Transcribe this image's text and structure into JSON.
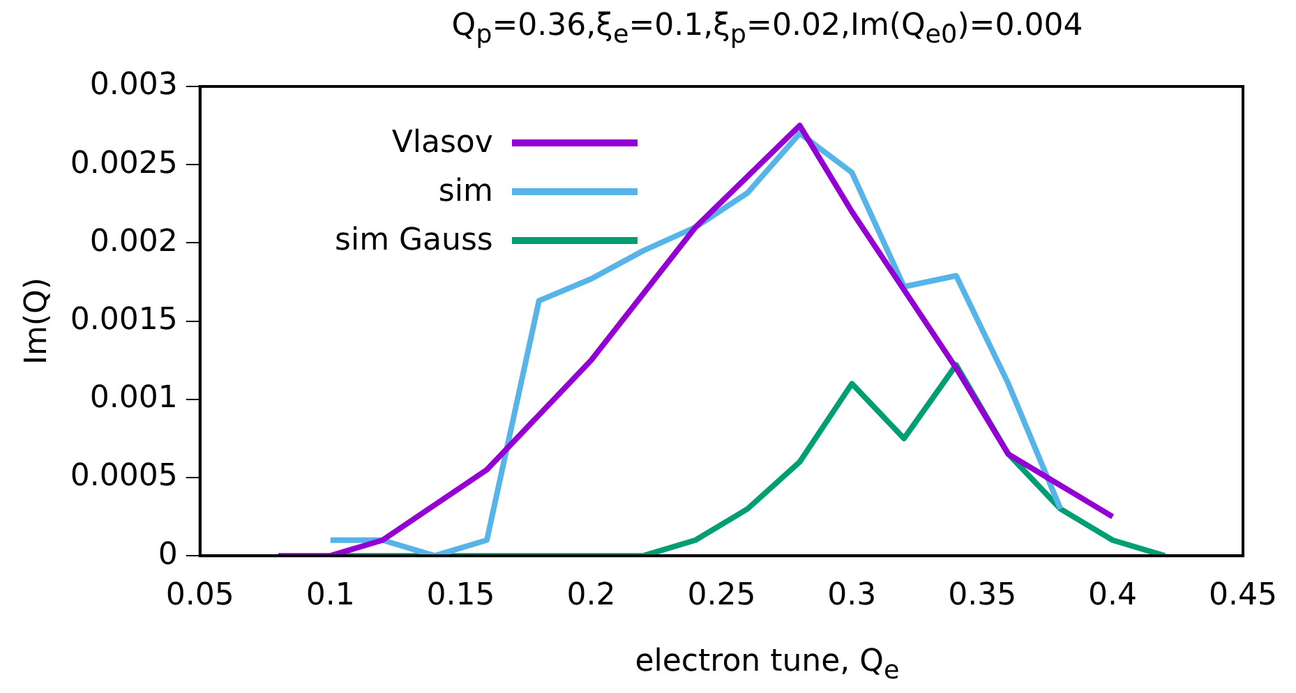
{
  "chart_data": {
    "type": "line",
    "title": "Q$_{p}$=0.36,ξ$_{e}$=0.1,ξ$_{p}$=0.02,Im(Q$_{e0}$)=0.004",
    "xlabel": "electron tune, Q$_{e}$",
    "ylabel": "Im(Q)",
    "xlim": [
      0.05,
      0.45
    ],
    "xticks": [
      0.05,
      0.1,
      0.15,
      0.2,
      0.25,
      0.3,
      0.35,
      0.4,
      0.45
    ],
    "ylim": [
      0,
      0.003
    ],
    "yticks": [
      0,
      0.0005,
      0.001,
      0.0015,
      0.002,
      0.0025,
      0.003
    ],
    "grid": false,
    "legend": "top left",
    "marker": "none",
    "line_style": "solid",
    "series": [
      {
        "name": "Vlasov",
        "color": "#9400d3",
        "x": [
          0.08,
          0.1,
          0.12,
          0.16,
          0.2,
          0.24,
          0.28,
          0.3,
          0.34,
          0.36,
          0.38,
          0.4
        ],
        "values": [
          0,
          0,
          0.0001,
          0.00055,
          0.00125,
          0.0021,
          0.00275,
          0.0022,
          0.0012,
          0.00065,
          0.00045,
          0.00025
        ]
      },
      {
        "name": "sim",
        "color": "#56b4e9",
        "x": [
          0.1,
          0.12,
          0.14,
          0.16,
          0.18,
          0.2,
          0.22,
          0.24,
          0.26,
          0.28,
          0.3,
          0.32,
          0.34,
          0.36,
          0.38
        ],
        "values": [
          0.0001,
          0.0001,
          0,
          0.0001,
          0.00163,
          0.00177,
          0.00195,
          0.0021,
          0.00232,
          0.0027,
          0.00245,
          0.00172,
          0.00179,
          0.0011,
          0.0003
        ]
      },
      {
        "name": "sim Gauss",
        "color": "#009e73",
        "x": [
          0.1,
          0.12,
          0.14,
          0.16,
          0.18,
          0.2,
          0.22,
          0.24,
          0.26,
          0.28,
          0.3,
          0.32,
          0.34,
          0.36,
          0.38,
          0.4,
          0.42
        ],
        "values": [
          0,
          0,
          0,
          0,
          0,
          0,
          0,
          0.0001,
          0.0003,
          0.0006,
          0.0011,
          0.00075,
          0.00122,
          0.00065,
          0.0003,
          0.0001,
          0
        ]
      }
    ]
  }
}
